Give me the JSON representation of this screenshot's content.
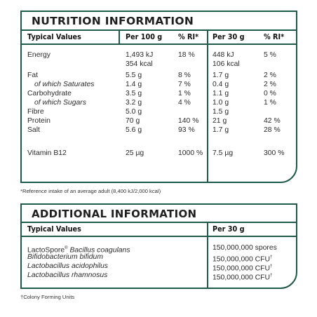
{
  "nutrition": {
    "title": "NUTRITION INFORMATION",
    "headers": [
      "Typical Values",
      "Per 100 g",
      "% RI*",
      "Per 30 g",
      "% RI*"
    ],
    "rows": [
      {
        "label": "Energy",
        "p100": "1,493 kJ",
        "p100b": "354 kcal",
        "ri100": "18 %",
        "p30": "448 kJ",
        "p30b": "106 kcal",
        "ri30": "5 %"
      },
      {
        "label": "Fat",
        "p100": "5.5 g",
        "ri100": "8 %",
        "p30": "1.7 g",
        "ri30": "2 %"
      },
      {
        "label": "of which Saturates",
        "p100": "1.4 g",
        "ri100": "7 %",
        "p30": "0.4 g",
        "ri30": "2 %"
      },
      {
        "label": "Carbohydrate",
        "p100": "3.5 g",
        "ri100": "1 %",
        "p30": "1.1 g",
        "ri30": "0 %"
      },
      {
        "label": "of which Sugars",
        "p100": "3.2 g",
        "ri100": "4 %",
        "p30": "1.0 g",
        "ri30": "1 %"
      },
      {
        "label": "Fibre",
        "p100": "5.0 g",
        "ri100": "",
        "p30": "1.5 g",
        "ri30": ""
      },
      {
        "label": "Protein",
        "p100": "70 g",
        "ri100": "140 %",
        "p30": "21 g",
        "ri30": "42 %"
      },
      {
        "label": "Salt",
        "p100": "5.6 g",
        "ri100": "93 %",
        "p30": "1.7 g",
        "ri30": "28 %"
      },
      {
        "label": "Vitamin B12",
        "p100": "25 µg",
        "ri100": "1000 %",
        "p30": "7.5 µg",
        "ri30": "300 %"
      }
    ],
    "footnote": "*Reference intake of an average adult (8,400 kJ/2,000 kcal)"
  },
  "additional": {
    "title": "ADDITIONAL INFORMATION",
    "headers": [
      "Typical Values",
      "Per 30 g"
    ],
    "rows": [
      {
        "label_a": "LactoSpore",
        "label_reg": "®",
        "label_b": " Bacillus coagulans",
        "value": "150,000,000 spores"
      },
      {
        "label": "Bifidobacterium bifidum",
        "value": "150,000,000 CFU",
        "dagger": "†"
      },
      {
        "label": "Lactobacillus acidophilus",
        "value": "150,000,000 CFU",
        "dagger": "†"
      },
      {
        "label": "Lactobacillus rhamnosus",
        "value": "150,000,000 CFU",
        "dagger": "†"
      }
    ],
    "footnote": "†Colony Forming Units"
  }
}
